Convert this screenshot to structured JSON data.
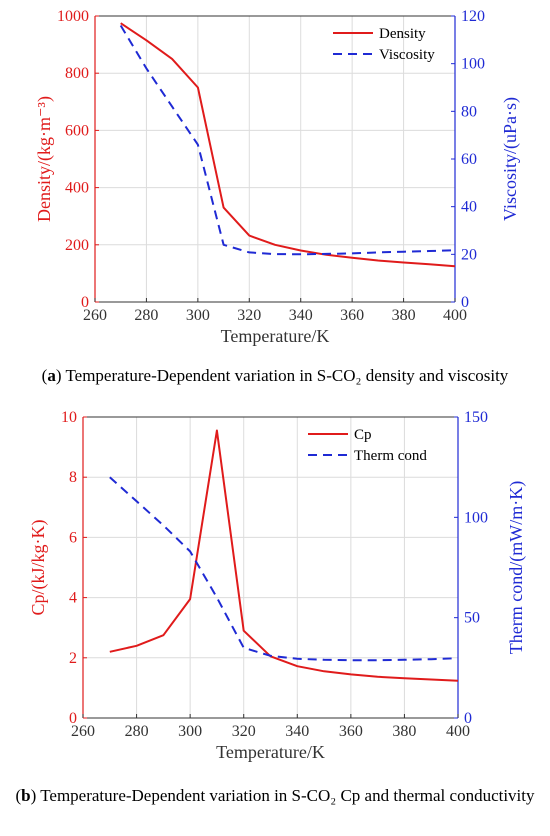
{
  "chart_data": [
    {
      "type": "line",
      "panel": "a",
      "caption_label": "a",
      "caption_text": "Temperature-Dependent variation in S-CO₂ density and viscosity",
      "xlabel": "Temperature/K",
      "ylabel_left": "Density/(kg·m⁻³)",
      "ylabel_right": "Viscosity/(uPa·s)",
      "xlim": [
        260,
        400
      ],
      "xticks": [
        260,
        280,
        300,
        320,
        340,
        360,
        380,
        400
      ],
      "ylim_left": [
        0,
        1000
      ],
      "yticks_left": [
        0,
        200,
        400,
        600,
        800,
        1000
      ],
      "ylim_right": [
        0,
        120
      ],
      "yticks_right": [
        0,
        20,
        40,
        60,
        80,
        100,
        120
      ],
      "grid": true,
      "legend_position": "top-right",
      "series": [
        {
          "name": "Density",
          "axis": "left",
          "style": "solid",
          "color": "#e01b1b",
          "x": [
            270,
            280,
            290,
            300,
            310,
            320,
            330,
            340,
            350,
            360,
            370,
            380,
            390,
            400
          ],
          "values": [
            975,
            915,
            850,
            750,
            330,
            232,
            200,
            180,
            165,
            155,
            145,
            138,
            132,
            125
          ]
        },
        {
          "name": "Viscosity",
          "axis": "right",
          "style": "dashed",
          "color": "#1f2ad4",
          "x": [
            270,
            280,
            290,
            300,
            310,
            320,
            330,
            340,
            350,
            360,
            370,
            380,
            390,
            400
          ],
          "values": [
            116,
            98,
            82,
            66,
            24,
            20.8,
            20.1,
            20,
            20.2,
            20.4,
            20.8,
            21.1,
            21.4,
            21.7
          ]
        }
      ]
    },
    {
      "type": "line",
      "panel": "b",
      "caption_label": "b",
      "caption_text": "Temperature-Dependent variation in S-CO₂ Cp and thermal conductivity",
      "xlabel": "Temperature/K",
      "ylabel_left": "Cp/(kJ/kg·K)",
      "ylabel_right": "Therm cond/(mW/m·K)",
      "xlim": [
        260,
        400
      ],
      "xticks": [
        260,
        280,
        300,
        320,
        340,
        360,
        380,
        400
      ],
      "ylim_left": [
        0,
        10
      ],
      "yticks_left": [
        0,
        2,
        4,
        6,
        8,
        10
      ],
      "ylim_right": [
        0,
        150
      ],
      "yticks_right": [
        0,
        50,
        100,
        150
      ],
      "grid": true,
      "legend_position": "top-right",
      "series": [
        {
          "name": "Cp",
          "axis": "left",
          "style": "solid",
          "color": "#e01b1b",
          "x": [
            270,
            280,
            290,
            300,
            310,
            320,
            330,
            340,
            350,
            360,
            370,
            380,
            390,
            400
          ],
          "values": [
            2.2,
            2.4,
            2.75,
            3.95,
            9.55,
            2.9,
            2.05,
            1.72,
            1.55,
            1.45,
            1.37,
            1.32,
            1.28,
            1.24
          ]
        },
        {
          "name": "Therm cond",
          "axis": "right",
          "style": "dashed",
          "color": "#1f2ad4",
          "x": [
            270,
            280,
            290,
            300,
            310,
            320,
            330,
            340,
            350,
            360,
            370,
            380,
            390,
            400
          ],
          "values": [
            120,
            108,
            96,
            83,
            60,
            35,
            31,
            29.5,
            29,
            28.8,
            28.8,
            29,
            29.3,
            29.8
          ]
        }
      ]
    }
  ]
}
